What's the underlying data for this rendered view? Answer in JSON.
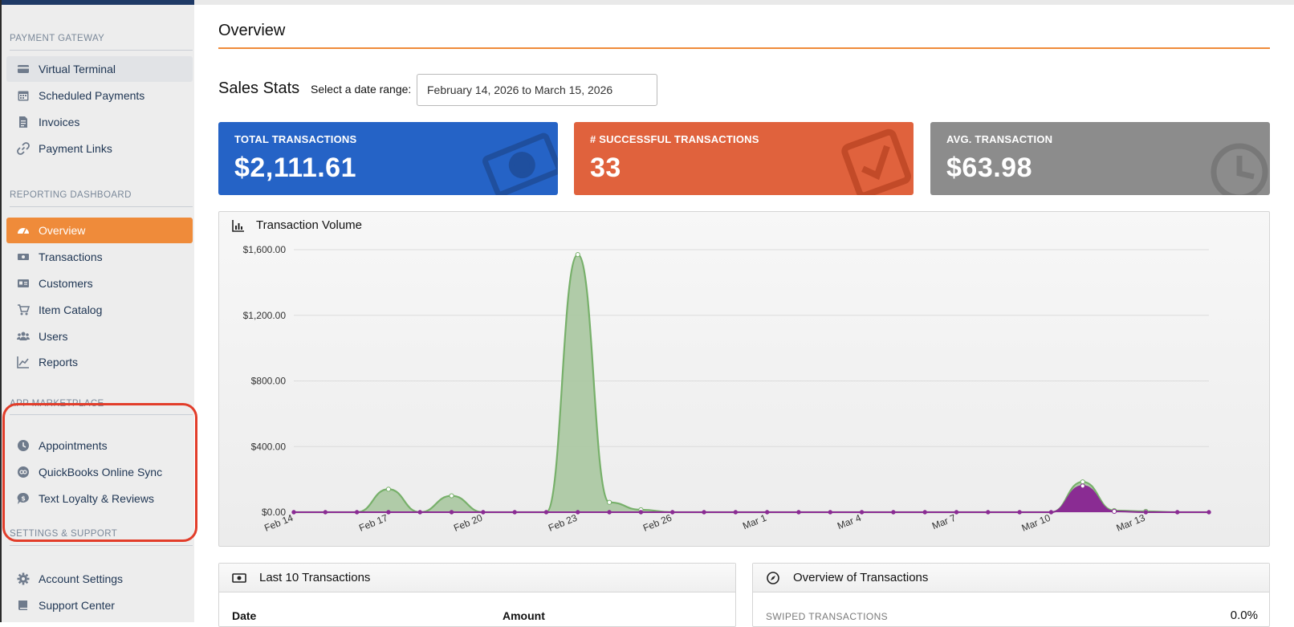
{
  "sidebar": {
    "sections": [
      {
        "title": "PAYMENT GATEWAY",
        "items": [
          {
            "label": "Virtual Terminal",
            "icon": "credit-card-icon",
            "state": "hover"
          },
          {
            "label": "Scheduled Payments",
            "icon": "calendar-icon"
          },
          {
            "label": "Invoices",
            "icon": "file-invoice-icon"
          },
          {
            "label": "Payment Links",
            "icon": "link-icon"
          }
        ]
      },
      {
        "title": "REPORTING DASHBOARD",
        "items": [
          {
            "label": "Overview",
            "icon": "speedometer-icon",
            "state": "active"
          },
          {
            "label": "Transactions",
            "icon": "money-bill-icon"
          },
          {
            "label": "Customers",
            "icon": "id-card-icon"
          },
          {
            "label": "Item Catalog",
            "icon": "shopping-cart-icon"
          },
          {
            "label": "Users",
            "icon": "users-icon"
          },
          {
            "label": "Reports",
            "icon": "line-chart-icon"
          }
        ]
      },
      {
        "title": "APP MARKETPLACE",
        "highlighted": true,
        "items": [
          {
            "label": "Appointments",
            "icon": "clock-icon"
          },
          {
            "label": "QuickBooks Online Sync",
            "icon": "quickbooks-icon"
          },
          {
            "label": "Text Loyalty & Reviews",
            "icon": "chat-dollar-icon"
          }
        ]
      },
      {
        "title": "SETTINGS & SUPPORT",
        "items": [
          {
            "label": "Account Settings",
            "icon": "gear-icon"
          },
          {
            "label": "Support Center",
            "icon": "book-icon"
          }
        ]
      }
    ],
    "highlight_color": "#e23d2a"
  },
  "main": {
    "title": "Overview",
    "sales_stats_title": "Sales Stats",
    "date_range_label": "Select a date range:",
    "date_range_value": "February 14, 2026 to March 15, 2026"
  },
  "cards": [
    {
      "label": "TOTAL TRANSACTIONS",
      "value": "$2,111.61",
      "color": "#2563c6",
      "icon": "money-bill-icon"
    },
    {
      "label": "# SUCCESSFUL TRANSACTIONS",
      "value": "33",
      "color": "#e0623d",
      "icon": "check-square-icon"
    },
    {
      "label": "AVG. TRANSACTION",
      "value": "$63.98",
      "color": "#8c8c8c",
      "icon": "clock-icon"
    }
  ],
  "chart_panel": {
    "title": "Transaction Volume",
    "icon": "bar-chart-icon"
  },
  "chart_data": {
    "type": "area",
    "title": "Transaction Volume",
    "x": [
      "Feb 14",
      "Feb 15",
      "Feb 16",
      "Feb 17",
      "Feb 18",
      "Feb 19",
      "Feb 20",
      "Feb 21",
      "Feb 22",
      "Feb 23",
      "Feb 24",
      "Feb 25",
      "Feb 26",
      "Feb 27",
      "Feb 28",
      "Mar 1",
      "Mar 2",
      "Mar 3",
      "Mar 4",
      "Mar 5",
      "Mar 6",
      "Mar 7",
      "Mar 8",
      "Mar 9",
      "Mar 10",
      "Mar 11",
      "Mar 12",
      "Mar 13",
      "Mar 14",
      "Mar 15"
    ],
    "x_tick_labels": [
      "Feb 14",
      "Feb 17",
      "Feb 20",
      "Feb 23",
      "Feb 26",
      "Mar 1",
      "Mar 4",
      "Mar 7",
      "Mar 10",
      "Mar 13"
    ],
    "series": [
      {
        "color": "#77b06a",
        "fill": "#a9c7a0",
        "values": [
          0,
          0,
          0,
          140,
          0,
          100,
          0,
          0,
          0,
          1570,
          60,
          15,
          0,
          0,
          0,
          0,
          0,
          0,
          0,
          0,
          0,
          0,
          0,
          0,
          0,
          185,
          10,
          5,
          0,
          0
        ]
      },
      {
        "color": "#8a2c93",
        "fill": "#8a2c93",
        "values": [
          0,
          0,
          0,
          0,
          0,
          0,
          0,
          0,
          0,
          0,
          0,
          0,
          0,
          0,
          0,
          0,
          0,
          0,
          0,
          0,
          0,
          0,
          0,
          0,
          0,
          160,
          5,
          0,
          0,
          0
        ]
      }
    ],
    "ylim": [
      0,
      1600
    ],
    "y_ticks": [
      0,
      400,
      800,
      1200,
      1600
    ],
    "y_tick_labels": [
      "$0.00",
      "$400.00",
      "$800.00",
      "$1,200.00",
      "$1,600.00"
    ],
    "grid": true
  },
  "last_transactions": {
    "title": "Last 10 Transactions",
    "icon": "money-bill-icon",
    "columns": [
      "Date",
      "Amount"
    ]
  },
  "overview_transactions": {
    "title": "Overview of Transactions",
    "icon": "compass-icon",
    "rows": [
      {
        "label": "SWIPED TRANSACTIONS",
        "value": "0.0%"
      }
    ]
  }
}
